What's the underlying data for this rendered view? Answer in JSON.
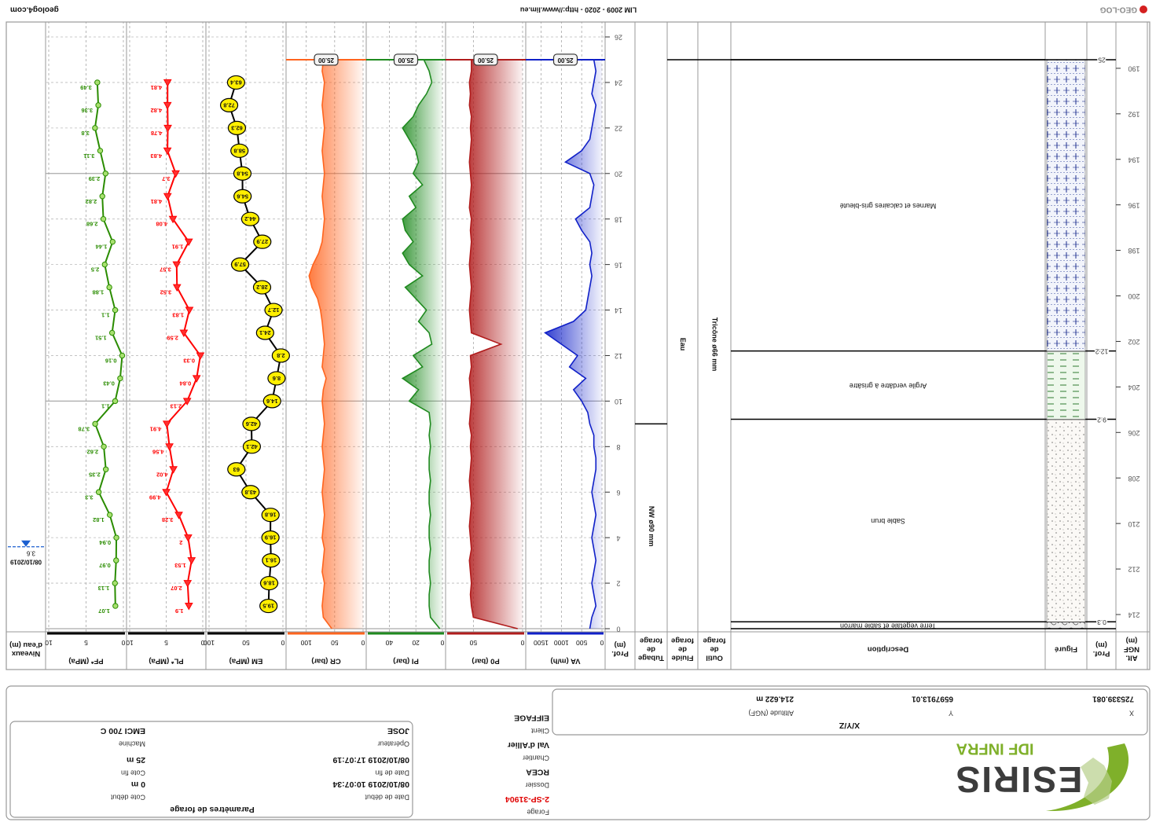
{
  "header": {
    "logo": {
      "name": "ESIRIS",
      "sub": "IDF INFRA"
    },
    "fields": [
      {
        "label": "Forage",
        "value": "2-SP-31904"
      },
      {
        "label": "Dossier",
        "value": "RCEA"
      },
      {
        "label": "Chantier",
        "value": "Val d'Allier"
      },
      {
        "label": "Client",
        "value": "EIFFAGE"
      }
    ],
    "parameters": {
      "title": "Paramètres de forage",
      "fields": [
        {
          "label": "Date de début",
          "value": "08/10/2019 10:07:34"
        },
        {
          "label": "Cote début",
          "value": "0 m"
        },
        {
          "label": "Date de fin",
          "value": "08/10/2019 17:07:19"
        },
        {
          "label": "Cote fin",
          "value": "25 m"
        },
        {
          "label": "Opérateur",
          "value": "JOSE"
        },
        {
          "label": "Machine",
          "value": "EMCI 700 C"
        }
      ]
    },
    "xyz": {
      "title": "X/Y/Z",
      "fields": [
        {
          "label": "X",
          "value": "725339.081"
        },
        {
          "label": "Y",
          "value": "6597913.01"
        },
        {
          "label": "Altitude (NGF)",
          "value": "214.622 m"
        }
      ]
    }
  },
  "log": {
    "ground_level": 214.622,
    "depth_lim": [
      0,
      26
    ],
    "depth_ticks": [
      0,
      2,
      4,
      6,
      8,
      10,
      12,
      14,
      16,
      18,
      20,
      22,
      24,
      26
    ],
    "alt_ticks": [
      190,
      192,
      194,
      196,
      198,
      200,
      202,
      204,
      206,
      208,
      210,
      212,
      214
    ],
    "headers": {
      "alt": [
        "Alt.",
        "NGF",
        "(m)"
      ],
      "prof": [
        "Prof.",
        "(m)"
      ],
      "figure": [
        "Figuré"
      ],
      "description": [
        "Description"
      ],
      "outil": [
        "Outil",
        "de",
        "forage"
      ],
      "fluide": [
        "Fluide",
        "de",
        "forage"
      ],
      "tubage": [
        "Tubage",
        "de",
        "forage"
      ],
      "prof2": [
        "Prof.",
        "(m)"
      ],
      "water": [
        "Niveaux",
        "d'eau (m)"
      ]
    },
    "layers": [
      {
        "top": 0,
        "bottom": 0.3,
        "description": "Terre végétale et sable marron"
      },
      {
        "top": 0.3,
        "bottom": 9.2,
        "description": "Sable brun"
      },
      {
        "top": 9.2,
        "bottom": 12.2,
        "description": "Argile verdâtre à grisâtre"
      },
      {
        "top": 12.2,
        "bottom": 25,
        "description": "Marnes et calcaires gris-bleuté"
      }
    ],
    "tool": {
      "label": "Tricône ø66 mm",
      "top": 0,
      "bottom": 25
    },
    "fluid": {
      "label": "Eau",
      "top": 0,
      "bottom": 25
    },
    "casing": {
      "label": "NW ø90 mm",
      "top": 0,
      "bottom": 9
    },
    "end_label": "25.00",
    "curve_depths": [
      0,
      0.5,
      1,
      1.5,
      2,
      2.5,
      3,
      3.5,
      4,
      4.5,
      5,
      5.5,
      6,
      6.5,
      7,
      7.5,
      8,
      8.5,
      9,
      9.5,
      10,
      10.5,
      11,
      11.5,
      12,
      12.5,
      13,
      13.5,
      14,
      14.5,
      15,
      15.5,
      16,
      16.5,
      17,
      17.5,
      18,
      18.5,
      19,
      19.5,
      20,
      20.5,
      21,
      21.5,
      22,
      22.5,
      23,
      23.5,
      24,
      24.5,
      25
    ],
    "curves": [
      {
        "name": "VA (m/h)",
        "color": "#1020c8",
        "xlim": [
          0,
          1800
        ],
        "xticks": [
          0,
          500,
          1000,
          1500
        ],
        "values": [
          300,
          250,
          150,
          200,
          250,
          200,
          150,
          200,
          250,
          200,
          150,
          200,
          250,
          200,
          150,
          150,
          200,
          200,
          300,
          350,
          500,
          700,
          400,
          800,
          600,
          1000,
          1400,
          700,
          400,
          350,
          300,
          250,
          300,
          250,
          300,
          500,
          650,
          300,
          250,
          200,
          300,
          900,
          500,
          300,
          250,
          200,
          150,
          250,
          200,
          150,
          200
        ]
      },
      {
        "name": "P0 (bar)",
        "color": "#b01c1c",
        "xlim": [
          0,
          75
        ],
        "xticks": [
          0,
          50
        ],
        "values": [
          5,
          50,
          52,
          53,
          52,
          53,
          54,
          52,
          53,
          54,
          53,
          52,
          53,
          54,
          53,
          52,
          53,
          52,
          54,
          53,
          52,
          53,
          54,
          52,
          53,
          22,
          52,
          53,
          54,
          53,
          52,
          53,
          54,
          53,
          52,
          53,
          52,
          54,
          53,
          52,
          53,
          54,
          53,
          52,
          53,
          52,
          54,
          53,
          54,
          52,
          52
        ]
      },
      {
        "name": "PI (bar)",
        "color": "#1f8a1f",
        "xlim": [
          0,
          55
        ],
        "xticks": [
          0,
          20,
          40
        ],
        "values": [
          2,
          9,
          10,
          10,
          9,
          10,
          10,
          9,
          10,
          10,
          9,
          10,
          10,
          9,
          10,
          10,
          9,
          10,
          9,
          10,
          25,
          18,
          30,
          15,
          22,
          8,
          10,
          18,
          12,
          20,
          28,
          15,
          25,
          30,
          22,
          28,
          30,
          20,
          25,
          15,
          22,
          18,
          20,
          25,
          30,
          22,
          18,
          12,
          8,
          10,
          14
        ]
      },
      {
        "name": "CR (bar)",
        "color": "#ff641e",
        "xlim": [
          0,
          130
        ],
        "xticks": [
          0,
          50,
          100
        ],
        "values": [
          55,
          70,
          72,
          70,
          68,
          72,
          70,
          68,
          72,
          70,
          68,
          70,
          72,
          70,
          68,
          70,
          72,
          70,
          68,
          70,
          72,
          70,
          65,
          72,
          70,
          68,
          70,
          72,
          75,
          80,
          90,
          95,
          88,
          78,
          72,
          70,
          68,
          70,
          72,
          70,
          68,
          70,
          72,
          70,
          68,
          70,
          72,
          70,
          68,
          72,
          70
        ]
      }
    ],
    "tests": {
      "depths": [
        1,
        2,
        3,
        4,
        5,
        6,
        7,
        8,
        9,
        10,
        11,
        12,
        13,
        14,
        15,
        16,
        17,
        18,
        19,
        20,
        21,
        22,
        23,
        24
      ],
      "series": [
        {
          "name": "EM (MPa)",
          "color": "#000000",
          "xlim": [
            0,
            100
          ],
          "xticks": [
            0,
            50,
            100
          ],
          "values": [
            19.5,
            18.6,
            16.1,
            16.9,
            16.8,
            43.8,
            63,
            42.1,
            42.6,
            14.6,
            8.6,
            2.8,
            24.1,
            12.7,
            28.2,
            57.9,
            27.9,
            44.2,
            54.6,
            54.8,
            58.8,
            62.3,
            72.8,
            63.4
          ]
        },
        {
          "name": "PL* (MPa)",
          "color": "#ff0000",
          "xlim": [
            0,
            10
          ],
          "xticks": [
            0,
            5,
            10
          ],
          "values": [
            1.9,
            2.07,
            1.53,
            2,
            3.28,
            4.99,
            4.02,
            4.56,
            4.91,
            2.13,
            0.84,
            0.33,
            2.59,
            1.83,
            3.52,
            3.57,
            1.91,
            4.08,
            4.81,
            3.7,
            4.83,
            4.78,
            4.82,
            4.81
          ]
        },
        {
          "name": "PF* (MPa)",
          "color": "#2a8c00",
          "xlim": [
            0,
            10
          ],
          "xticks": [
            0,
            5,
            10
          ],
          "values": [
            1.07,
            1.13,
            0.97,
            0.94,
            1.82,
            3.3,
            2.35,
            2.62,
            3.78,
            1.1,
            0.43,
            0.16,
            1.51,
            1.1,
            1.88,
            2.5,
            1.44,
            2.68,
            2.82,
            2.39,
            3.11,
            3.8,
            3.36,
            3.49
          ]
        }
      ]
    },
    "water_level": {
      "depth": 3.6,
      "date": "08/10/2019"
    }
  },
  "footer": {
    "brand": "GEO-LOG",
    "credit": "LIM 2009 - 2020 - http://www.lim.eu",
    "site": "geolog4.com"
  }
}
